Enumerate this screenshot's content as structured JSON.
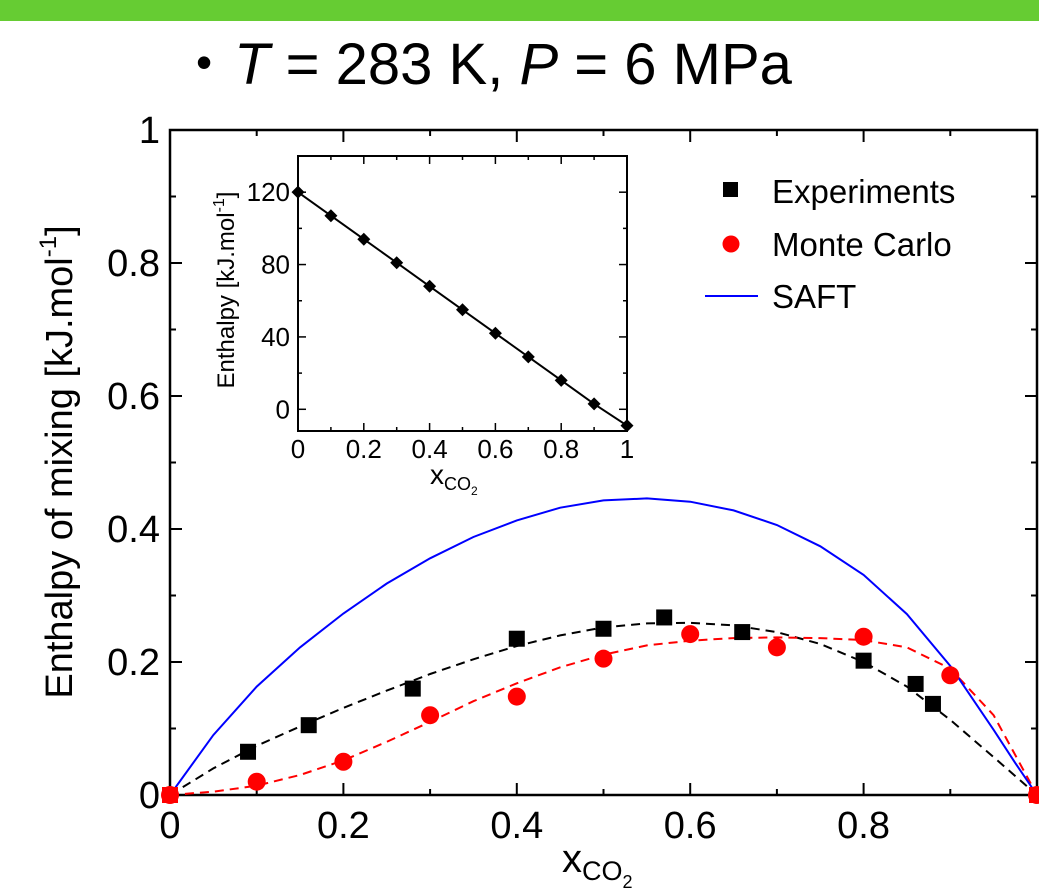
{
  "header": {
    "bullet": "•",
    "t_symbol": "T",
    "equals": "=",
    "t_value": "283 K,",
    "p_symbol": "P",
    "p_value": "6 MPa"
  },
  "colors": {
    "banner": "#66cc33",
    "experiments": "#000000",
    "monte_carlo": "#ff0000",
    "saft": "#0000ff"
  },
  "chart_data": [
    {
      "type": "scatter",
      "xlabel": "x",
      "xlabel_sub": "CO",
      "xlabel_subsub": "2",
      "ylabel": "Enthalpy of mixing [kJ.mol",
      "ylabel_sup": "-1",
      "ylabel_close": "]",
      "xlim": [
        0,
        1
      ],
      "ylim": [
        0,
        1
      ],
      "x_ticks": [
        {
          "value": 0,
          "label": "0"
        },
        {
          "value": 0.2,
          "label": "0.2"
        },
        {
          "value": 0.4,
          "label": "0.4"
        },
        {
          "value": 0.6,
          "label": "0.6"
        },
        {
          "value": 0.8,
          "label": "0.8"
        }
      ],
      "y_ticks": [
        {
          "value": 0,
          "label": "0"
        },
        {
          "value": 0.2,
          "label": "0.2"
        },
        {
          "value": 0.4,
          "label": "0.4"
        },
        {
          "value": 0.6,
          "label": "0.6"
        },
        {
          "value": 0.8,
          "label": "0.8"
        },
        {
          "value": 1,
          "label": "1"
        }
      ],
      "legend_position": "top-right",
      "series": [
        {
          "name": "Experiments",
          "marker": "square",
          "color": "#000000",
          "dashed_fit": true,
          "x": [
            0,
            0.09,
            0.16,
            0.28,
            0.4,
            0.5,
            0.57,
            0.66,
            0.8,
            0.86,
            0.88,
            1.0
          ],
          "y": [
            0,
            0.065,
            0.105,
            0.16,
            0.235,
            0.25,
            0.267,
            0.245,
            0.202,
            0.167,
            0.137,
            0
          ]
        },
        {
          "name": "Monte Carlo",
          "marker": "circle",
          "color": "#ff0000",
          "dashed_fit": true,
          "x": [
            0,
            0.1,
            0.2,
            0.3,
            0.4,
            0.5,
            0.6,
            0.7,
            0.8,
            0.9,
            1.0
          ],
          "y": [
            0,
            0.02,
            0.05,
            0.12,
            0.148,
            0.205,
            0.242,
            0.222,
            0.238,
            0.18,
            0
          ]
        },
        {
          "name": "SAFT",
          "marker": "line",
          "color": "#0000ff",
          "x": [
            0,
            0.05,
            0.1,
            0.15,
            0.2,
            0.25,
            0.3,
            0.35,
            0.4,
            0.45,
            0.5,
            0.55,
            0.6,
            0.65,
            0.7,
            0.75,
            0.8,
            0.85,
            0.9,
            0.95,
            0.975,
            1.0
          ],
          "y": [
            0,
            0.09,
            0.163,
            0.222,
            0.273,
            0.318,
            0.356,
            0.388,
            0.413,
            0.432,
            0.443,
            0.446,
            0.441,
            0.428,
            0.406,
            0.374,
            0.331,
            0.272,
            0.194,
            0.098,
            0.048,
            0
          ]
        }
      ],
      "fits": {
        "experiments": {
          "x": [
            0,
            0.05,
            0.1,
            0.15,
            0.2,
            0.25,
            0.3,
            0.35,
            0.4,
            0.45,
            0.5,
            0.55,
            0.6,
            0.65,
            0.7,
            0.75,
            0.8,
            0.85,
            0.9,
            0.95,
            1.0
          ],
          "y": [
            0,
            0.04,
            0.074,
            0.103,
            0.131,
            0.157,
            0.182,
            0.204,
            0.224,
            0.24,
            0.252,
            0.258,
            0.259,
            0.255,
            0.245,
            0.227,
            0.2,
            0.163,
            0.113,
            0.057,
            0
          ]
        },
        "monte_carlo": {
          "x": [
            0,
            0.05,
            0.1,
            0.15,
            0.2,
            0.25,
            0.3,
            0.35,
            0.4,
            0.45,
            0.5,
            0.55,
            0.6,
            0.65,
            0.7,
            0.75,
            0.8,
            0.85,
            0.9,
            0.95,
            1.0
          ],
          "y": [
            0,
            0.005,
            0.014,
            0.03,
            0.052,
            0.08,
            0.11,
            0.141,
            0.168,
            0.192,
            0.211,
            0.225,
            0.232,
            0.236,
            0.237,
            0.236,
            0.233,
            0.222,
            0.19,
            0.12,
            0
          ]
        }
      }
    },
    {
      "type": "line",
      "xlabel": "x",
      "xlabel_sub": "CO",
      "xlabel_subsub": "2",
      "ylabel": "Enthalpy [kJ.mol",
      "ylabel_sup": "-1",
      "ylabel_close": "]",
      "xlim": [
        0,
        1
      ],
      "ylim": [
        -12,
        140
      ],
      "x_ticks": [
        {
          "value": 0,
          "label": "0"
        },
        {
          "value": 0.2,
          "label": "0.2"
        },
        {
          "value": 0.4,
          "label": "0.4"
        },
        {
          "value": 0.6,
          "label": "0.6"
        },
        {
          "value": 0.8,
          "label": "0.8"
        },
        {
          "value": 1,
          "label": "1"
        }
      ],
      "y_ticks": [
        {
          "value": 0,
          "label": "0"
        },
        {
          "value": 40,
          "label": "40"
        },
        {
          "value": 80,
          "label": "80"
        },
        {
          "value": 120,
          "label": "120"
        }
      ],
      "series": [
        {
          "marker": "diamond",
          "color": "#000000",
          "x": [
            0,
            0.1,
            0.2,
            0.3,
            0.4,
            0.5,
            0.6,
            0.7,
            0.8,
            0.9,
            1.0
          ],
          "y": [
            120,
            107,
            94,
            81,
            68,
            55,
            42,
            29,
            16,
            3,
            -9
          ]
        }
      ]
    }
  ]
}
